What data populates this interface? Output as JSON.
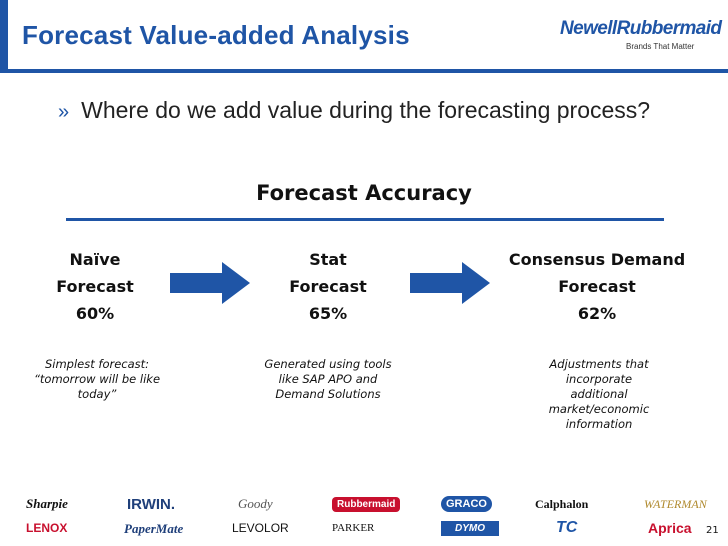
{
  "header": {
    "title": "Forecast Value-added Analysis"
  },
  "logo": {
    "name": "NewellRubbermaid",
    "tagline": "Brands That Matter"
  },
  "bullet": {
    "marker": "»",
    "text": "Where do we add value during the forecasting process?"
  },
  "section_title": "Forecast Accuracy",
  "stages": [
    {
      "line1": "Naïve",
      "line2": "Forecast",
      "value": "60%",
      "description": [
        "Simplest forecast:",
        "“tomorrow will be like",
        "today”"
      ]
    },
    {
      "line1": "Stat",
      "line2": "Forecast",
      "value": "65%",
      "description": [
        "Generated using tools",
        "like SAP APO and",
        "Demand Solutions"
      ]
    },
    {
      "line1": "Consensus Demand",
      "line2": "Forecast",
      "value": "62%",
      "description": [
        "Adjustments that",
        "incorporate",
        "additional",
        "market/economic",
        "information"
      ]
    }
  ],
  "brands": [
    {
      "name": "Sharpie",
      "color": "#111111"
    },
    {
      "name": "IRWIN.",
      "color": "#1f3f7a"
    },
    {
      "name": "Goody",
      "color": "#555555"
    },
    {
      "name": "Rubbermaid",
      "color": "#c8102e"
    },
    {
      "name": "GRACO",
      "color": "#1f55a6"
    },
    {
      "name": "Calphalon",
      "color": "#111111"
    },
    {
      "name": "WATERMAN",
      "color": "#b08a2e"
    },
    {
      "name": "LENOX",
      "color": "#c8102e"
    },
    {
      "name": "PaperMate",
      "color": "#1f3f7a"
    },
    {
      "name": "LEVOLOR",
      "color": "#111111"
    },
    {
      "name": "PARKER",
      "color": "#111111"
    },
    {
      "name": "DYMO",
      "color": "#1f55a6"
    },
    {
      "name": "TC",
      "color": "#1f55a6"
    },
    {
      "name": "Aprica",
      "color": "#c8102e"
    }
  ],
  "page_number": "21",
  "colors": {
    "accent": "#1f55a6",
    "arrow": "#1f55a6"
  },
  "icons": {
    "arrow": "right-arrow-icon"
  }
}
